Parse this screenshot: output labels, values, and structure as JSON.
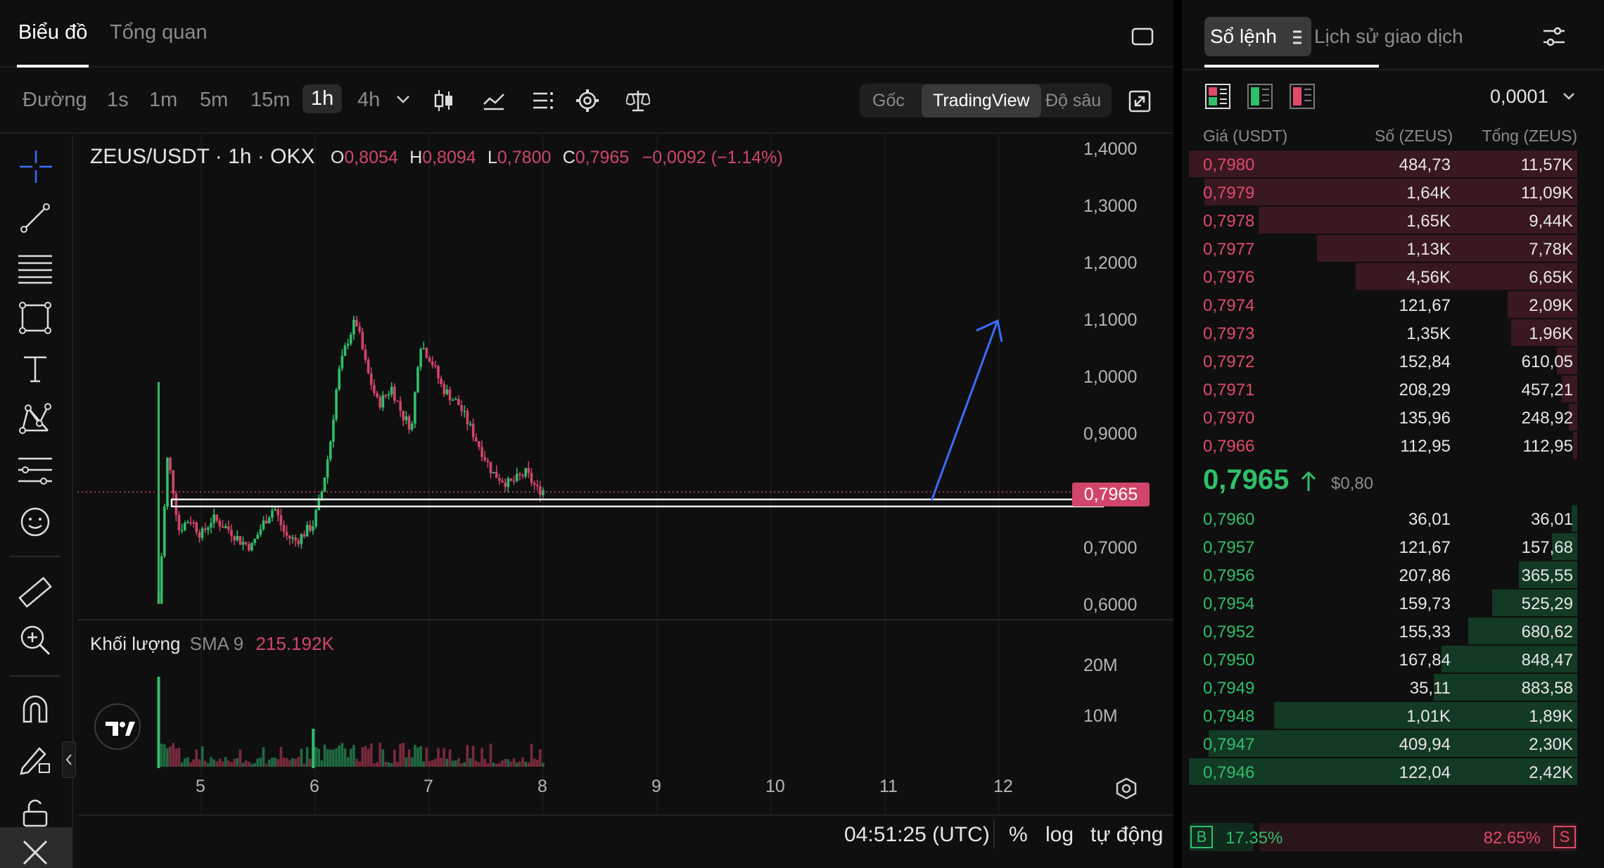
{
  "tabs": {
    "chart": "Biểu đồ",
    "overview": "Tổng quan"
  },
  "toolbar": {
    "line": "Đường",
    "intervals": [
      "1s",
      "1m",
      "5m",
      "15m",
      "1h",
      "4h"
    ],
    "active_interval": "1h",
    "views": [
      "Gốc",
      "TradingView",
      "Độ sâu"
    ],
    "active_view": "TradingView"
  },
  "legend": {
    "symbol": "ZEUS/USDT · 1h · OKX",
    "o_label": "O",
    "o": "0,8054",
    "h_label": "H",
    "h": "0,8094",
    "l_label": "L",
    "l": "0,7800",
    "c_label": "C",
    "c": "0,7965",
    "change": "−0,0092 (−1.14%)"
  },
  "price_axis": [
    "1,4000",
    "1,3000",
    "1,2000",
    "1,1000",
    "1,0000",
    "0,9000",
    "0,7000",
    "0,6000"
  ],
  "current_price": "0,7965",
  "volume": {
    "label": "Khối lượng",
    "sma": "SMA 9",
    "value": "215.192K",
    "axis": [
      "20M",
      "10M"
    ]
  },
  "time_axis": [
    "5",
    "6",
    "7",
    "8",
    "9",
    "10",
    "11",
    "12"
  ],
  "bottom": {
    "clock": "04:51:25 (UTC)",
    "percent": "%",
    "log": "log",
    "auto": "tự động"
  },
  "orderbook": {
    "tab_book": "Sổ lệnh",
    "tab_history": "Lịch sử giao dịch",
    "precision": "0,0001",
    "headers": {
      "price": "Giá (USDT)",
      "size": "Số (ZEUS)",
      "total": "Tổng (ZEUS)"
    },
    "asks": [
      {
        "p": "0,7980",
        "q": "484,73",
        "t": "11,57K",
        "depth": 1.0
      },
      {
        "p": "0,7979",
        "q": "1,64K",
        "t": "11,09K",
        "depth": 0.96
      },
      {
        "p": "0,7978",
        "q": "1,65K",
        "t": "9,44K",
        "depth": 0.82
      },
      {
        "p": "0,7977",
        "q": "1,13K",
        "t": "7,78K",
        "depth": 0.67
      },
      {
        "p": "0,7976",
        "q": "4,56K",
        "t": "6,65K",
        "depth": 0.57
      },
      {
        "p": "0,7974",
        "q": "121,67",
        "t": "2,09K",
        "depth": 0.18
      },
      {
        "p": "0,7973",
        "q": "1,35K",
        "t": "1,96K",
        "depth": 0.17
      },
      {
        "p": "0,7972",
        "q": "152,84",
        "t": "610,05",
        "depth": 0.053
      },
      {
        "p": "0,7971",
        "q": "208,29",
        "t": "457,21",
        "depth": 0.04
      },
      {
        "p": "0,7970",
        "q": "135,96",
        "t": "248,92",
        "depth": 0.022
      },
      {
        "p": "0,7966",
        "q": "112,95",
        "t": "112,95",
        "depth": 0.01
      }
    ],
    "mid_price": "0,7965",
    "mid_usd": "$0,80",
    "bids": [
      {
        "p": "0,7960",
        "q": "36,01",
        "t": "36,01",
        "depth": 0.015
      },
      {
        "p": "0,7957",
        "q": "121,67",
        "t": "157,68",
        "depth": 0.065
      },
      {
        "p": "0,7956",
        "q": "207,86",
        "t": "365,55",
        "depth": 0.15
      },
      {
        "p": "0,7954",
        "q": "159,73",
        "t": "525,29",
        "depth": 0.22
      },
      {
        "p": "0,7952",
        "q": "155,33",
        "t": "680,62",
        "depth": 0.28
      },
      {
        "p": "0,7950",
        "q": "167,84",
        "t": "848,47",
        "depth": 0.35
      },
      {
        "p": "0,7949",
        "q": "35,11",
        "t": "883,58",
        "depth": 0.37
      },
      {
        "p": "0,7948",
        "q": "1,01K",
        "t": "1,89K",
        "depth": 0.78
      },
      {
        "p": "0,7947",
        "q": "409,94",
        "t": "2,30K",
        "depth": 0.95
      },
      {
        "p": "0,7946",
        "q": "122,04",
        "t": "2,42K",
        "depth": 1.0
      }
    ],
    "ratio": {
      "buy_label": "B",
      "buy": "17.35%",
      "sell": "82.65%",
      "sell_label": "S",
      "buy_fraction": 0.1735
    }
  }
}
